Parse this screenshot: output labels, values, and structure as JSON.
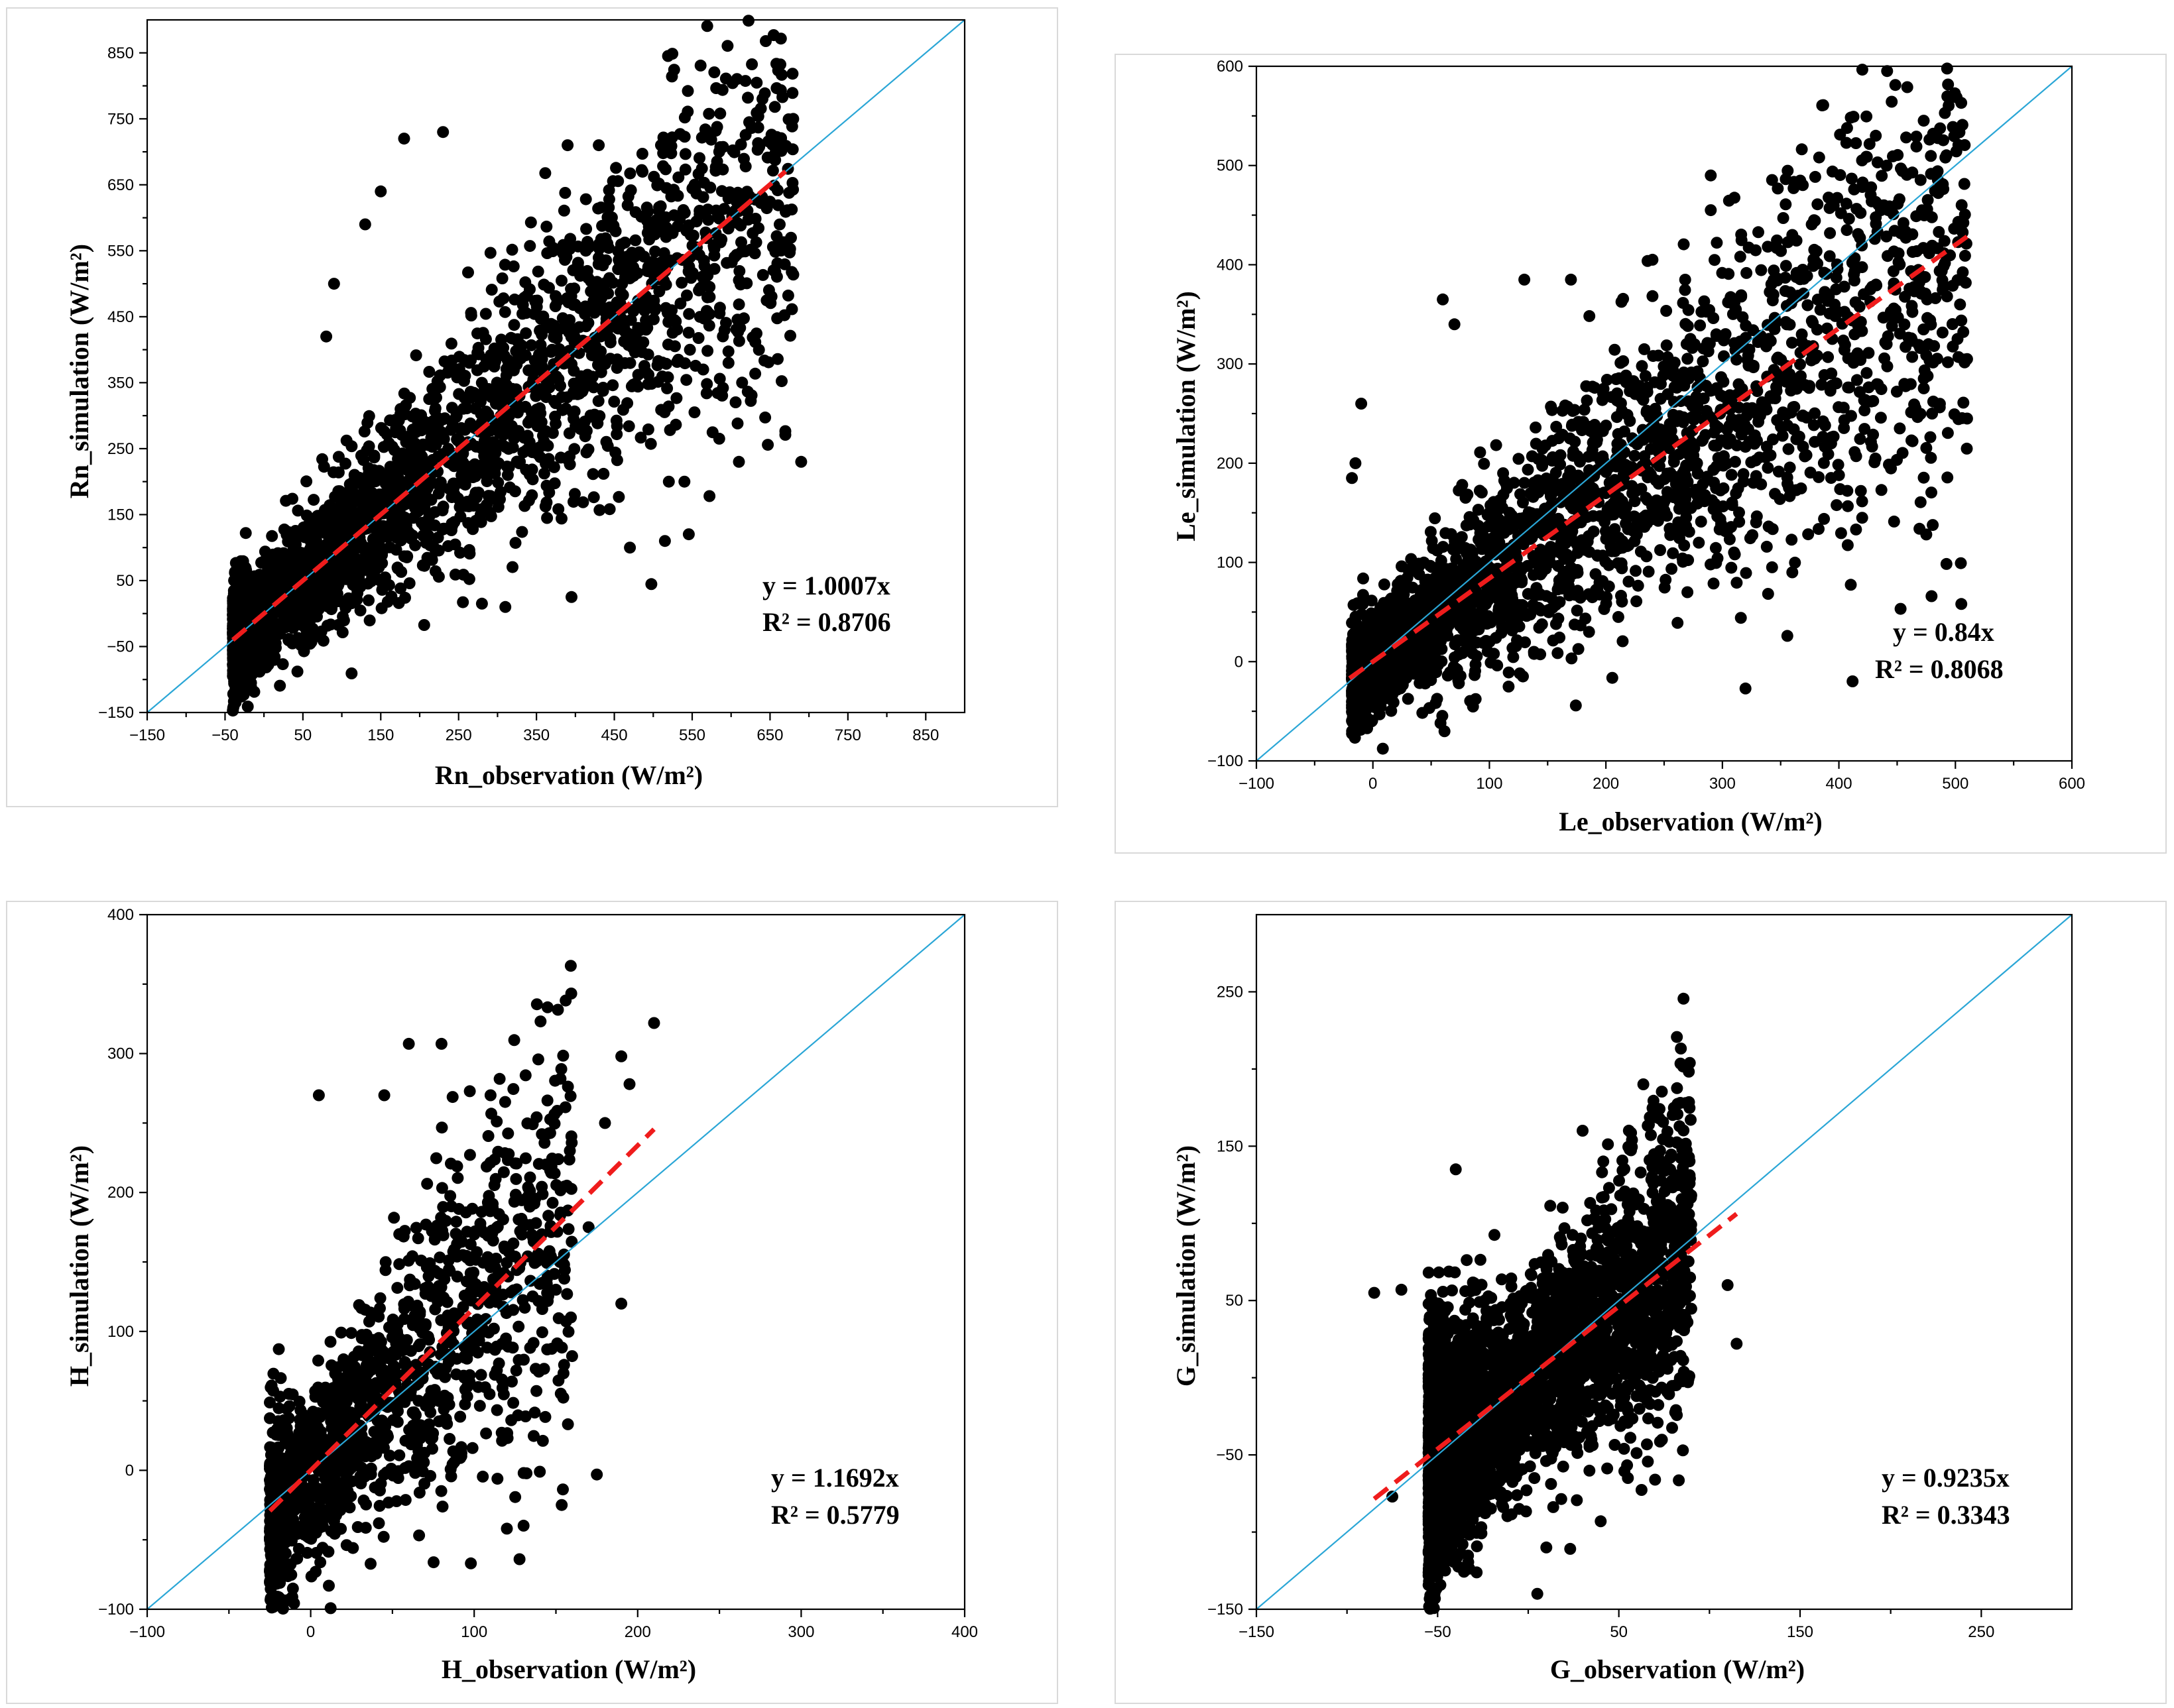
{
  "chart_data": [
    {
      "type": "scatter",
      "id": "rn",
      "xlabel": "Rn_observation (W/m²)",
      "ylabel": "Rn_simulation (W/m²)",
      "xlim": [
        -150,
        900
      ],
      "ylim": [
        -150,
        900
      ],
      "xticks": [
        "-150",
        "-50",
        "50",
        "150",
        "250",
        "350",
        "450",
        "550",
        "650",
        "750",
        "850"
      ],
      "yticks": [
        "-150",
        "-50",
        "50",
        "150",
        "250",
        "350",
        "450",
        "550",
        "650",
        "750",
        "850"
      ],
      "fit": {
        "slope": 1.0007,
        "x_range": [
          -40,
          670
        ]
      },
      "equation": "y = 1.0007x",
      "r2": "R² = 0.8706",
      "one_to_one": true,
      "n_points": 2600,
      "point_model": {
        "x_min": -40,
        "x_max": 680,
        "spread_base": 40,
        "spread_scale": 0.18
      },
      "outliers": [
        [
          180,
          720
        ],
        [
          230,
          730
        ],
        [
          390,
          710
        ],
        [
          430,
          710
        ],
        [
          510,
          710
        ],
        [
          150,
          640
        ],
        [
          690,
          230
        ],
        [
          610,
          230
        ],
        [
          395,
          25
        ],
        [
          470,
          100
        ],
        [
          515,
          110
        ],
        [
          310,
          10
        ],
        [
          280,
          15
        ],
        [
          130,
          590
        ],
        [
          90,
          500
        ],
        [
          80,
          420
        ],
        [
          540,
          200
        ],
        [
          520,
          200
        ]
      ]
    },
    {
      "type": "scatter",
      "id": "le",
      "xlabel": "Le_observation (W/m²)",
      "ylabel": "Le_simulation (W/m²)",
      "xlim": [
        -100,
        600
      ],
      "ylim": [
        -100,
        600
      ],
      "xticks": [
        "-100",
        "0",
        "100",
        "200",
        "300",
        "400",
        "500",
        "600"
      ],
      "yticks": [
        "-100",
        "0",
        "100",
        "200",
        "300",
        "400",
        "500",
        "600"
      ],
      "fit": {
        "slope": 0.84,
        "x_range": [
          -20,
          510
        ]
      },
      "equation": "y = 0.84x",
      "r2": "R² = 0.8068",
      "one_to_one": true,
      "n_points": 2600,
      "point_model": {
        "x_min": -18,
        "x_max": 510,
        "spread_base": 25,
        "spread_scale": 0.22
      },
      "outliers": [
        [
          290,
          490
        ],
        [
          290,
          455
        ],
        [
          240,
          405
        ],
        [
          360,
          430
        ],
        [
          -10,
          260
        ],
        [
          -15,
          200
        ],
        [
          -18,
          185
        ],
        [
          60,
          365
        ],
        [
          70,
          340
        ],
        [
          130,
          385
        ],
        [
          170,
          385
        ],
        [
          510,
          305
        ],
        [
          480,
          250
        ],
        [
          510,
          245
        ],
        [
          420,
          145
        ],
        [
          360,
          90
        ],
        [
          310,
          110
        ],
        [
          270,
          70
        ]
      ]
    },
    {
      "type": "scatter",
      "id": "h",
      "xlabel": "H_observation (W/m²)",
      "ylabel": "H_simulation (W/m²)",
      "xlim": [
        -100,
        400
      ],
      "ylim": [
        -100,
        400
      ],
      "xticks": [
        "-100",
        "0",
        "100",
        "200",
        "300",
        "400"
      ],
      "yticks": [
        "-100",
        "0",
        "100",
        "200",
        "300",
        "400"
      ],
      "fit": {
        "slope": 1.1692,
        "x_range": [
          -25,
          210
        ]
      },
      "equation": "y = 1.1692x",
      "r2": "R² = 0.5779",
      "one_to_one": true,
      "n_points": 1400,
      "point_model": {
        "x_min": -25,
        "x_max": 160,
        "spread_base": 30,
        "spread_scale": 0.35
      },
      "outliers": [
        [
          210,
          322
        ],
        [
          190,
          298
        ],
        [
          195,
          278
        ],
        [
          60,
          307
        ],
        [
          80,
          307
        ],
        [
          5,
          270
        ],
        [
          175,
          -3
        ],
        [
          120,
          -42
        ],
        [
          190,
          120
        ],
        [
          180,
          250
        ],
        [
          170,
          175
        ],
        [
          150,
          130
        ],
        [
          145,
          140
        ],
        [
          45,
          270
        ],
        [
          110,
          270
        ]
      ]
    },
    {
      "type": "scatter",
      "id": "g",
      "xlabel": "G_observation (W/m²)",
      "ylabel": "G_simulation (W/m²)",
      "xlim": [
        -150,
        300
      ],
      "ylim": [
        -150,
        300
      ],
      "xticks": [
        "-150",
        "-50",
        "50",
        "150",
        "250"
      ],
      "yticks": [
        "-150",
        "-50",
        "50",
        "150",
        "250"
      ],
      "fit": {
        "slope": 0.9235,
        "x_range": [
          -85,
          115
        ]
      },
      "equation": "y = 0.9235x",
      "r2": "R² = 0.3343",
      "one_to_one": true,
      "n_points": 3200,
      "point_model": {
        "x_min": -55,
        "x_max": 90,
        "spread_base": 28,
        "spread_scale": 0.3
      },
      "outliers": [
        [
          -85,
          55
        ],
        [
          -70,
          57
        ],
        [
          -75,
          -77
        ],
        [
          -40,
          135
        ],
        [
          30,
          160
        ],
        [
          10,
          -110
        ],
        [
          5,
          -140
        ],
        [
          40,
          -93
        ],
        [
          55,
          -65
        ],
        [
          115,
          22
        ],
        [
          110,
          60
        ],
        [
          85,
          148
        ],
        [
          -5,
          -85
        ]
      ]
    }
  ]
}
